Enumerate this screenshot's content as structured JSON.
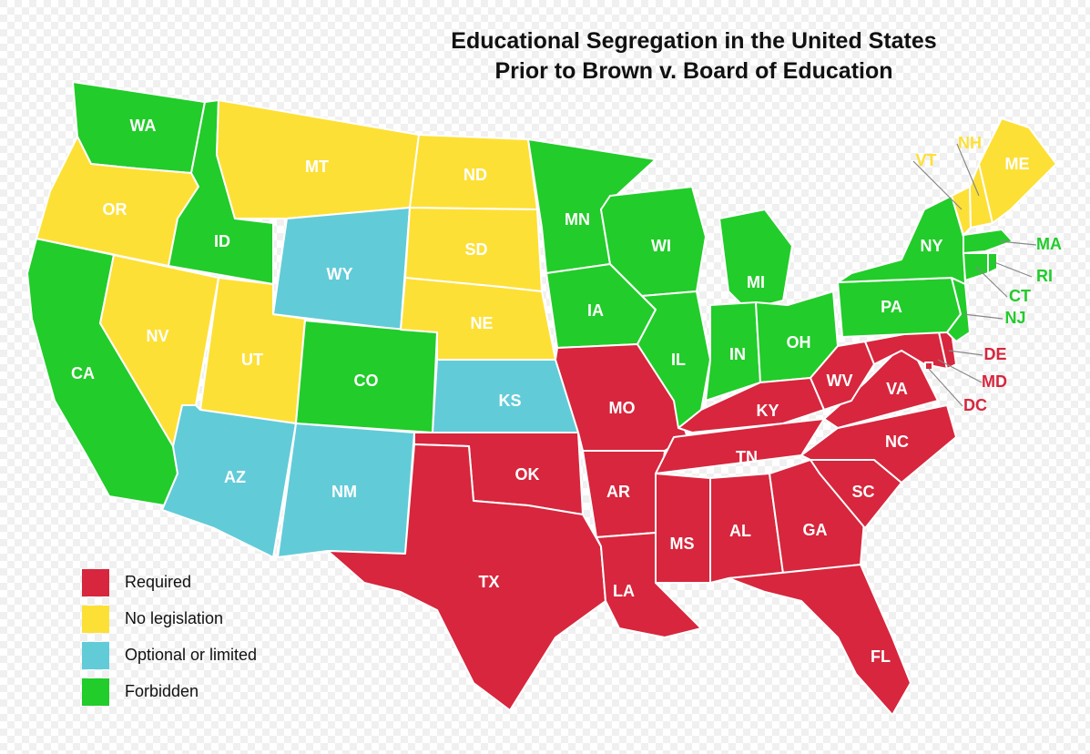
{
  "title": [
    "Educational Segregation in the United States",
    "Prior to Brown v. Board of Education"
  ],
  "legend": [
    {
      "label": "Required",
      "color": "#d7263d"
    },
    {
      "label": "No legislation",
      "color": "#fde036"
    },
    {
      "label": "Optional or limited",
      "color": "#62cbd8"
    },
    {
      "label": "Forbidden",
      "color": "#22cc2a"
    }
  ],
  "states": [
    {
      "abbr": "WA",
      "category": "Forbidden"
    },
    {
      "abbr": "OR",
      "category": "No legislation"
    },
    {
      "abbr": "CA",
      "category": "Forbidden"
    },
    {
      "abbr": "ID",
      "category": "Forbidden"
    },
    {
      "abbr": "NV",
      "category": "No legislation"
    },
    {
      "abbr": "UT",
      "category": "No legislation"
    },
    {
      "abbr": "AZ",
      "category": "Optional or limited"
    },
    {
      "abbr": "MT",
      "category": "No legislation"
    },
    {
      "abbr": "WY",
      "category": "Optional or limited"
    },
    {
      "abbr": "CO",
      "category": "Forbidden"
    },
    {
      "abbr": "NM",
      "category": "Optional or limited"
    },
    {
      "abbr": "ND",
      "category": "No legislation"
    },
    {
      "abbr": "SD",
      "category": "No legislation"
    },
    {
      "abbr": "NE",
      "category": "No legislation"
    },
    {
      "abbr": "KS",
      "category": "Optional or limited"
    },
    {
      "abbr": "OK",
      "category": "Required"
    },
    {
      "abbr": "TX",
      "category": "Required"
    },
    {
      "abbr": "MN",
      "category": "Forbidden"
    },
    {
      "abbr": "IA",
      "category": "Forbidden"
    },
    {
      "abbr": "MO",
      "category": "Required"
    },
    {
      "abbr": "AR",
      "category": "Required"
    },
    {
      "abbr": "LA",
      "category": "Required"
    },
    {
      "abbr": "WI",
      "category": "Forbidden"
    },
    {
      "abbr": "IL",
      "category": "Forbidden"
    },
    {
      "abbr": "MI",
      "category": "Forbidden"
    },
    {
      "abbr": "IN",
      "category": "Forbidden"
    },
    {
      "abbr": "OH",
      "category": "Forbidden"
    },
    {
      "abbr": "KY",
      "category": "Required"
    },
    {
      "abbr": "TN",
      "category": "Required"
    },
    {
      "abbr": "MS",
      "category": "Required"
    },
    {
      "abbr": "AL",
      "category": "Required"
    },
    {
      "abbr": "GA",
      "category": "Required"
    },
    {
      "abbr": "FL",
      "category": "Required"
    },
    {
      "abbr": "SC",
      "category": "Required"
    },
    {
      "abbr": "NC",
      "category": "Required"
    },
    {
      "abbr": "VA",
      "category": "Required"
    },
    {
      "abbr": "WV",
      "category": "Required"
    },
    {
      "abbr": "MD",
      "category": "Required"
    },
    {
      "abbr": "DE",
      "category": "Required"
    },
    {
      "abbr": "DC",
      "category": "Required"
    },
    {
      "abbr": "PA",
      "category": "Forbidden"
    },
    {
      "abbr": "NJ",
      "category": "Forbidden"
    },
    {
      "abbr": "NY",
      "category": "Forbidden"
    },
    {
      "abbr": "VT",
      "category": "No legislation"
    },
    {
      "abbr": "NH",
      "category": "No legislation"
    },
    {
      "abbr": "ME",
      "category": "No legislation"
    },
    {
      "abbr": "MA",
      "category": "Forbidden"
    },
    {
      "abbr": "CT",
      "category": "Forbidden"
    },
    {
      "abbr": "RI",
      "category": "Forbidden"
    }
  ]
}
